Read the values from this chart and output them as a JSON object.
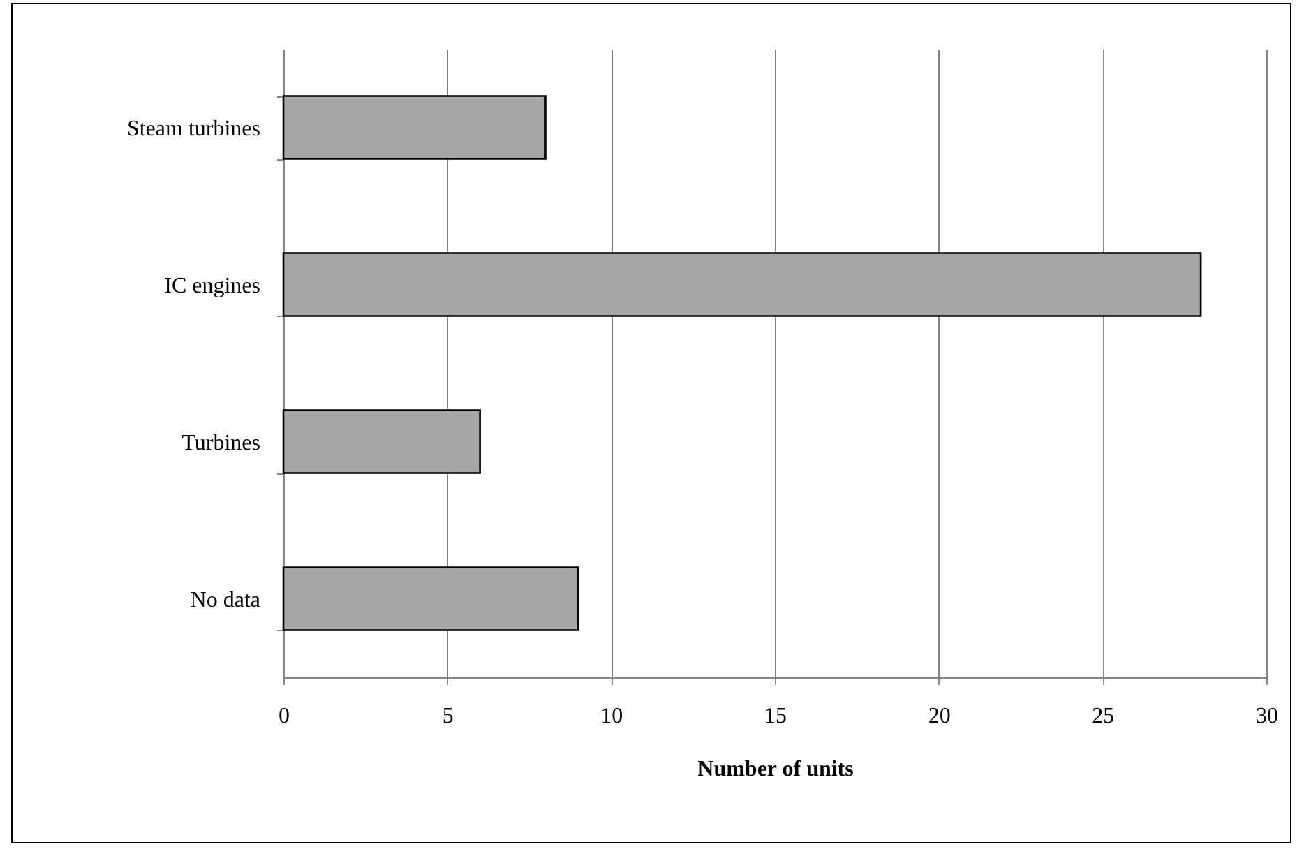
{
  "chart_data": {
    "type": "bar",
    "orientation": "horizontal",
    "xlabel": "Number of units",
    "categories": [
      "Steam turbines",
      "IC engines",
      "Turbines",
      "No data"
    ],
    "values": [
      8,
      28,
      6,
      9
    ],
    "color": "#a6a6a6",
    "xlim": [
      0,
      30
    ],
    "xticks": [
      0,
      5,
      10,
      15,
      20,
      25,
      30
    ],
    "grid": "x"
  }
}
